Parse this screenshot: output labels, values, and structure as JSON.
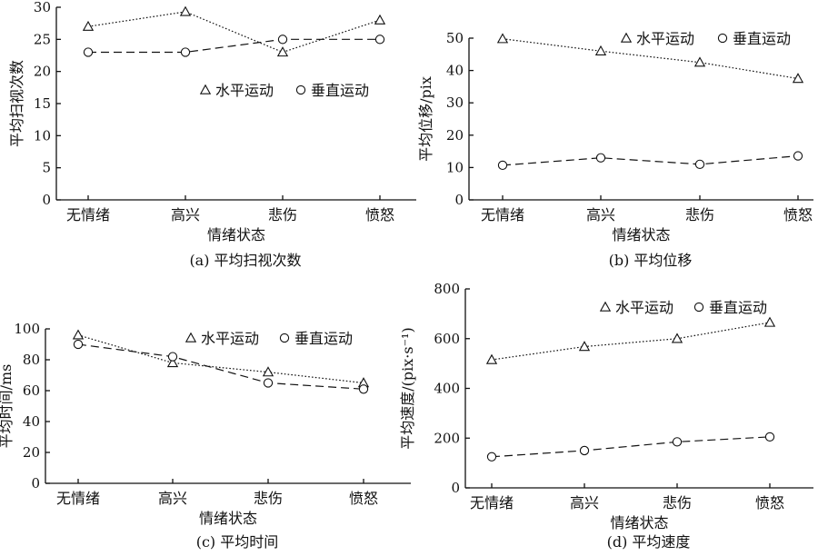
{
  "chart_data": [
    {
      "type": "line",
      "caption": "(a) 平均扫视次数",
      "xlabel": "情绪状态",
      "ylabel": "平均扫视次数",
      "categories": [
        "无情绪",
        "高兴",
        "悲伤",
        "愤怒"
      ],
      "ylim": [
        0,
        30
      ],
      "yticks": [
        0,
        5,
        10,
        15,
        20,
        25,
        30
      ],
      "legend_position": "center-right",
      "series": [
        {
          "name": "水平运动",
          "marker": "triangle",
          "dash": "dotted",
          "values": [
            27,
            29.3,
            23,
            28
          ]
        },
        {
          "name": "垂直运动",
          "marker": "circle",
          "dash": "dashed",
          "values": [
            23,
            23,
            25,
            25
          ]
        }
      ]
    },
    {
      "type": "line",
      "caption": "(b) 平均位移",
      "xlabel": "情绪状态",
      "ylabel": "平均位移/pix",
      "categories": [
        "无情绪",
        "高兴",
        "悲伤",
        "愤怒"
      ],
      "ylim": [
        0,
        50
      ],
      "yticks": [
        0,
        10,
        20,
        30,
        40,
        50
      ],
      "legend_position": "top-right",
      "series": [
        {
          "name": "水平运动",
          "marker": "triangle",
          "dash": "dotted",
          "values": [
            49.8,
            46,
            42.5,
            37.5
          ]
        },
        {
          "name": "垂直运动",
          "marker": "circle",
          "dash": "dashed",
          "values": [
            10.7,
            13,
            11,
            13.6
          ]
        }
      ]
    },
    {
      "type": "line",
      "caption": "(c) 平均时间",
      "xlabel": "情绪状态",
      "ylabel": "平均时间/ms",
      "categories": [
        "无情绪",
        "高兴",
        "悲伤",
        "愤怒"
      ],
      "ylim": [
        0,
        100
      ],
      "yticks": [
        0,
        20,
        40,
        60,
        80,
        100
      ],
      "legend_position": "top-right",
      "series": [
        {
          "name": "水平运动",
          "marker": "triangle",
          "dash": "dotted",
          "values": [
            96,
            78,
            72,
            65
          ]
        },
        {
          "name": "垂直运动",
          "marker": "circle",
          "dash": "dashed",
          "values": [
            90,
            82,
            65,
            61
          ]
        }
      ]
    },
    {
      "type": "line",
      "caption": "(d) 平均速度",
      "xlabel": "情绪状态",
      "ylabel": "平均速度/(pix·s⁻¹)",
      "categories": [
        "无情绪",
        "高兴",
        "悲伤",
        "愤怒"
      ],
      "ylim": [
        0,
        800
      ],
      "yticks": [
        0,
        200,
        400,
        600,
        800
      ],
      "legend_position": "top-right",
      "series": [
        {
          "name": "水平运动",
          "marker": "triangle",
          "dash": "dotted",
          "values": [
            515,
            568,
            600,
            665
          ]
        },
        {
          "name": "垂直运动",
          "marker": "circle",
          "dash": "dashed",
          "values": [
            125,
            150,
            185,
            205
          ]
        }
      ]
    }
  ]
}
